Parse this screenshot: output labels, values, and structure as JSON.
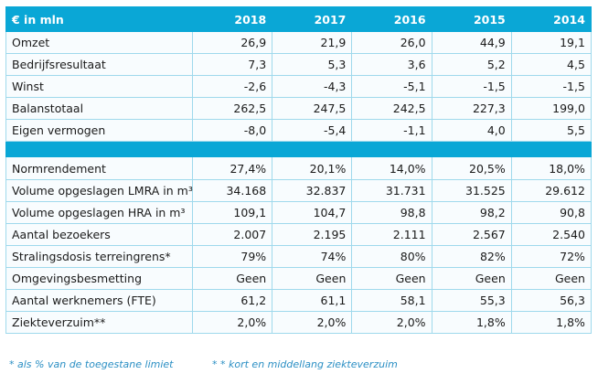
{
  "table": {
    "header": {
      "label": "€ in mln",
      "years": [
        "2018",
        "2017",
        "2016",
        "2015",
        "2014"
      ]
    },
    "group1": [
      {
        "label": "Omzet",
        "values": [
          "26,9",
          "21,9",
          "26,0",
          "44,9",
          "19,1"
        ]
      },
      {
        "label": "Bedrijfsresultaat",
        "values": [
          "7,3",
          "5,3",
          "3,6",
          "5,2",
          "4,5"
        ]
      },
      {
        "label": "Winst",
        "values": [
          "-2,6",
          "-4,3",
          "-5,1",
          "-1,5",
          "-1,5"
        ]
      },
      {
        "label": "Balanstotaal",
        "values": [
          "262,5",
          "247,5",
          "242,5",
          "227,3",
          "199,0"
        ]
      },
      {
        "label": "Eigen vermogen",
        "values": [
          "-8,0",
          "-5,4",
          "-1,1",
          "4,0",
          "5,5"
        ]
      }
    ],
    "group2": [
      {
        "label": "Normrendement",
        "values": [
          "27,4%",
          "20,1%",
          "14,0%",
          "20,5%",
          "18,0%"
        ]
      },
      {
        "label": "Volume opgeslagen LMRA in m³",
        "values": [
          "34.168",
          "32.837",
          "31.731",
          "31.525",
          "29.612"
        ]
      },
      {
        "label": "Volume opgeslagen HRA in m³",
        "values": [
          "109,1",
          "104,7",
          "98,8",
          "98,2",
          "90,8"
        ]
      },
      {
        "label": "Aantal bezoekers",
        "values": [
          "2.007",
          "2.195",
          "2.111",
          "2.567",
          "2.540"
        ]
      },
      {
        "label": "Stralingsdosis terreingrens*",
        "values": [
          "79%",
          "74%",
          "80%",
          "82%",
          "72%"
        ]
      },
      {
        "label": "Omgevingsbesmetting",
        "values": [
          "Geen",
          "Geen",
          "Geen",
          "Geen",
          "Geen"
        ]
      },
      {
        "label": "Aantal werknemers (FTE)",
        "values": [
          "61,2",
          "61,1",
          "58,1",
          "55,3",
          "56,3"
        ]
      },
      {
        "label": "Ziekteverzuim**",
        "values": [
          "2,0%",
          "2,0%",
          "2,0%",
          "1,8%",
          "1,8%"
        ]
      }
    ]
  },
  "footnotes": {
    "note1": "* als % van de toegestane limiet",
    "note2": "* * kort en middellang ziekteverzuim"
  },
  "colors": {
    "header_bg": "#0aa7d6",
    "header_text": "#ffffff",
    "border": "#9fd9ec",
    "footnote_text": "#2b8fc4"
  }
}
